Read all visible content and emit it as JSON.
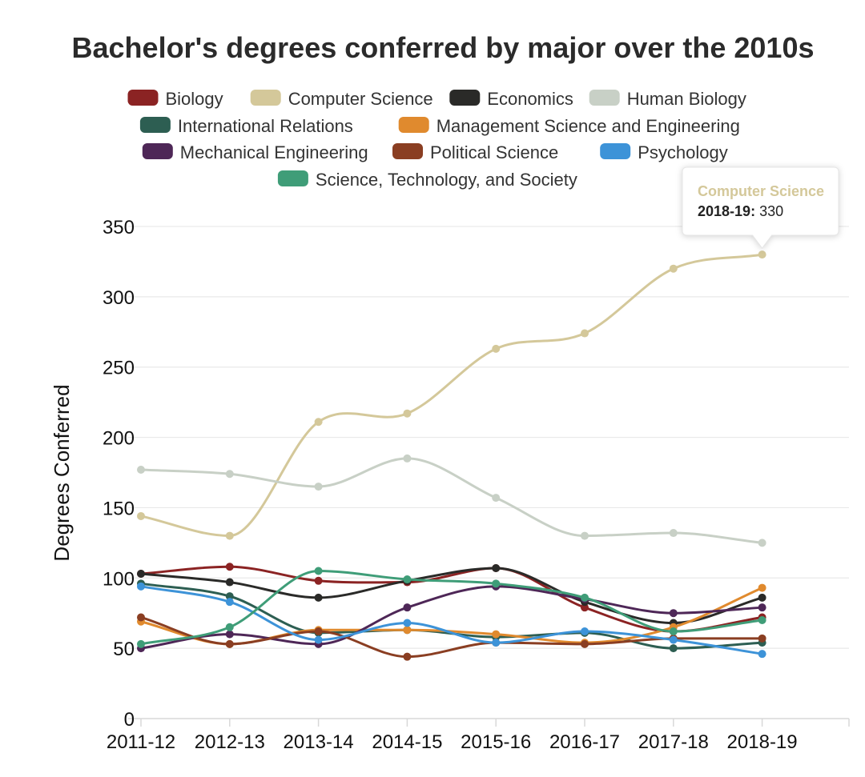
{
  "chart_data": {
    "type": "line",
    "title": "Bachelor's degrees conferred by major over the 2010s",
    "xlabel": "",
    "ylabel": "Degrees Conferred",
    "ylim": [
      0,
      350
    ],
    "yticks": [
      0,
      50,
      100,
      150,
      200,
      250,
      300,
      350
    ],
    "grid": true,
    "legend_position": "top",
    "categories": [
      "2011-12",
      "2012-13",
      "2013-14",
      "2014-15",
      "2015-16",
      "2016-17",
      "2017-18",
      "2018-19"
    ],
    "series": [
      {
        "name": "Biology",
        "color": "#8b2323",
        "values": [
          103,
          108,
          98,
          97,
          107,
          79,
          62,
          72
        ]
      },
      {
        "name": "Computer Science",
        "color": "#d4c89a",
        "values": [
          144,
          130,
          211,
          217,
          263,
          274,
          320,
          330
        ]
      },
      {
        "name": "Economics",
        "color": "#2a2a28",
        "values": [
          103,
          97,
          86,
          98,
          107,
          83,
          68,
          86
        ]
      },
      {
        "name": "Human Biology",
        "color": "#c8d0c6",
        "values": [
          177,
          174,
          165,
          185,
          157,
          130,
          132,
          125
        ]
      },
      {
        "name": "International Relations",
        "color": "#2d5e52",
        "values": [
          96,
          87,
          61,
          63,
          58,
          61,
          50,
          54
        ]
      },
      {
        "name": "Management Science and Engineering",
        "color": "#e08a2e",
        "values": [
          69,
          53,
          63,
          63,
          60,
          54,
          65,
          93
        ]
      },
      {
        "name": "Mechanical Engineering",
        "color": "#4e2757",
        "values": [
          50,
          60,
          53,
          79,
          94,
          85,
          75,
          79
        ]
      },
      {
        "name": "Political Science",
        "color": "#8a3e22",
        "values": [
          72,
          53,
          62,
          44,
          54,
          53,
          57,
          57
        ]
      },
      {
        "name": "Psychology",
        "color": "#3d93d8",
        "values": [
          94,
          83,
          56,
          68,
          54,
          62,
          56,
          46
        ]
      },
      {
        "name": "Science, Technology, and Society",
        "color": "#3f9d78",
        "values": [
          53,
          65,
          105,
          99,
          96,
          86,
          62,
          70
        ]
      }
    ],
    "tooltip": {
      "series": "Computer Science",
      "x": "2018-19",
      "value": "330",
      "separator": ":"
    }
  }
}
